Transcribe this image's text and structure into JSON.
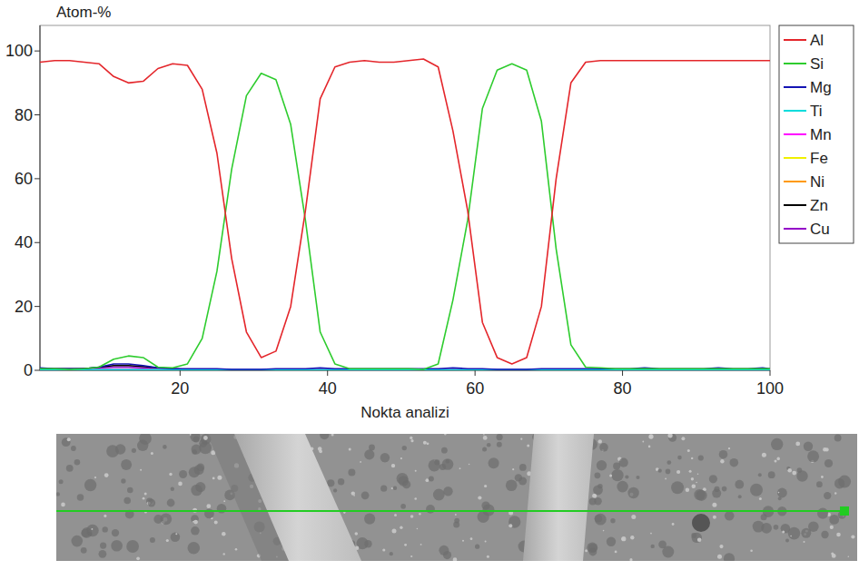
{
  "chart_data": {
    "type": "line",
    "y_label": "Atom-%",
    "x_label": "Nokta analizi",
    "x": [
      1,
      3,
      5,
      7,
      9,
      11,
      13,
      15,
      17,
      19,
      21,
      23,
      25,
      27,
      29,
      31,
      33,
      35,
      37,
      39,
      41,
      43,
      45,
      47,
      49,
      51,
      53,
      55,
      57,
      59,
      61,
      63,
      65,
      67,
      69,
      71,
      73,
      75,
      77,
      79,
      81,
      83,
      85,
      87,
      89,
      91,
      93,
      95,
      97,
      99,
      100
    ],
    "xlim": [
      1,
      100
    ],
    "xticks": [
      20,
      40,
      60,
      80,
      100
    ],
    "ylim": [
      0,
      108
    ],
    "yticks": [
      0,
      20,
      40,
      60,
      80,
      100
    ],
    "grid": false,
    "legend": "right",
    "series": [
      {
        "name": "Al",
        "color": "#e4262b",
        "values": [
          96.5,
          97,
          97,
          96.5,
          96,
          92,
          90,
          90.5,
          94.5,
          96,
          95.5,
          88,
          68,
          35,
          12,
          4,
          6,
          20,
          50,
          85,
          95,
          96.5,
          97,
          96.5,
          96.5,
          97,
          97.5,
          95,
          75,
          50,
          15,
          4,
          2,
          4,
          20,
          60,
          90,
          96.5,
          97,
          97,
          97,
          97,
          97,
          97,
          97,
          97,
          97,
          97,
          97,
          97,
          97
        ]
      },
      {
        "name": "Si",
        "color": "#2ecc2e",
        "values": [
          0.5,
          0.5,
          0.3,
          0.5,
          1,
          3.5,
          4.5,
          4,
          1,
          0.8,
          2,
          10,
          31,
          63,
          86,
          93,
          91,
          77,
          47,
          12,
          2,
          0.5,
          0.5,
          0.5,
          0.5,
          0.5,
          0.3,
          2,
          22,
          47,
          82,
          94,
          96,
          94,
          78,
          38,
          8,
          1,
          0.8,
          0.5,
          0.5,
          0.5,
          0.5,
          0.5,
          0.5,
          0.5,
          0.5,
          0.5,
          0.5,
          0.5,
          0.5
        ]
      },
      {
        "name": "Mg",
        "color": "#1414b4",
        "values": [
          0.8,
          0.5,
          0.5,
          0.5,
          1,
          2,
          2,
          1.5,
          0.8,
          0.5,
          0.5,
          0.5,
          0.5,
          0.3,
          0.3,
          0.3,
          0.5,
          0.5,
          0.5,
          0.8,
          0.5,
          0.5,
          0.5,
          0.5,
          0.5,
          0.5,
          0.5,
          0.5,
          0.8,
          0.5,
          0.5,
          0.3,
          0.3,
          0.3,
          0.5,
          0.5,
          0.5,
          0.5,
          0.5,
          0.5,
          0.5,
          0.8,
          0.5,
          0.5,
          0.5,
          0.5,
          0.8,
          0.5,
          0.5,
          0.8,
          0.5
        ]
      },
      {
        "name": "Ti",
        "color": "#00dcdc",
        "values": [
          0.2,
          0.2,
          0.2,
          0.2,
          0.2,
          0.2,
          0.2,
          0.2,
          0.2,
          0.2,
          0.2,
          0.2,
          0.2,
          0.2,
          0.2,
          0.2,
          0.2,
          0.2,
          0.2,
          0.2,
          0.2,
          0.2,
          0.2,
          0.2,
          0.2,
          0.2,
          0.2,
          0.2,
          0.2,
          0.2,
          0.2,
          0.2,
          0.2,
          0.2,
          0.2,
          0.2,
          0.2,
          0.2,
          0.2,
          0.2,
          0.2,
          0.2,
          0.2,
          0.2,
          0.2,
          0.2,
          0.2,
          0.2,
          0.2,
          0.2,
          0.2
        ]
      },
      {
        "name": "Mn",
        "color": "#ff00ff",
        "values": [
          0.3,
          0.3,
          0.3,
          0.3,
          0.3,
          0.3,
          0.3,
          0.3,
          0.3,
          0.3,
          0.3,
          0.3,
          0.3,
          0.3,
          0.3,
          0.3,
          0.3,
          0.3,
          0.3,
          0.3,
          0.3,
          0.3,
          0.3,
          0.3,
          0.3,
          0.3,
          0.3,
          0.3,
          0.3,
          0.3,
          0.3,
          0.3,
          0.3,
          0.3,
          0.3,
          0.3,
          0.3,
          0.3,
          0.3,
          0.3,
          0.3,
          0.3,
          0.3,
          0.3,
          0.3,
          0.3,
          0.3,
          0.3,
          0.3,
          0.3,
          0.3
        ]
      },
      {
        "name": "Fe",
        "color": "#f0f000",
        "values": [
          0.2,
          0.2,
          0.2,
          0.2,
          0.2,
          0.2,
          0.2,
          0.2,
          0.2,
          0.2,
          0.2,
          0.2,
          0.2,
          0.2,
          0.2,
          0.2,
          0.2,
          0.2,
          0.2,
          0.2,
          0.2,
          0.2,
          0.2,
          0.2,
          0.2,
          0.2,
          0.2,
          0.2,
          0.2,
          0.2,
          0.2,
          0.2,
          0.2,
          0.2,
          0.2,
          0.2,
          0.2,
          0.2,
          0.2,
          0.2,
          0.2,
          0.2,
          0.2,
          0.2,
          0.2,
          0.2,
          0.2,
          0.2,
          0.2,
          0.2,
          0.2
        ]
      },
      {
        "name": "Ni",
        "color": "#ff9900",
        "values": [
          0.3,
          0.3,
          0.3,
          0.3,
          0.3,
          0.3,
          0.3,
          0.3,
          0.3,
          0.3,
          0.3,
          0.3,
          0.3,
          0.3,
          0.3,
          0.3,
          0.3,
          0.3,
          0.3,
          0.3,
          0.3,
          0.3,
          0.3,
          0.3,
          0.3,
          0.3,
          0.3,
          0.3,
          0.3,
          0.3,
          0.3,
          0.3,
          0.3,
          0.3,
          0.3,
          0.3,
          0.3,
          0.3,
          0.3,
          0.3,
          0.3,
          0.3,
          0.3,
          0.3,
          0.3,
          0.3,
          0.3,
          0.3,
          0.3,
          0.3,
          0.3
        ]
      },
      {
        "name": "Zn",
        "color": "#000000",
        "values": [
          0.5,
          0.5,
          0.5,
          0.5,
          1,
          1.5,
          1.5,
          1.2,
          0.8,
          0.5,
          0.3,
          0.3,
          0.3,
          0.3,
          0.3,
          0.3,
          0.3,
          0.3,
          0.3,
          0.3,
          0.3,
          0.3,
          0.3,
          0.3,
          0.3,
          0.3,
          0.3,
          0.3,
          0.3,
          0.3,
          0.3,
          0.3,
          0.3,
          0.3,
          0.3,
          0.3,
          0.3,
          0.3,
          0.3,
          0.3,
          0.3,
          0.3,
          0.3,
          0.3,
          0.3,
          0.3,
          0.3,
          0.3,
          0.3,
          0.3,
          0.3
        ]
      },
      {
        "name": "Cu",
        "color": "#9400c8",
        "values": [
          0.3,
          0.3,
          0.3,
          0.5,
          0.8,
          1,
          1,
          0.8,
          0.5,
          0.3,
          0.2,
          0.2,
          0.2,
          0.2,
          0.2,
          0.2,
          0.2,
          0.2,
          0.2,
          0.2,
          0.2,
          0.2,
          0.2,
          0.2,
          0.2,
          0.2,
          0.2,
          0.2,
          0.2,
          0.2,
          0.2,
          0.2,
          0.2,
          0.2,
          0.2,
          0.2,
          0.2,
          0.2,
          0.2,
          0.2,
          0.2,
          0.2,
          0.2,
          0.2,
          0.2,
          0.2,
          0.2,
          0.2,
          0.2,
          0.2,
          0.2
        ]
      }
    ]
  }
}
